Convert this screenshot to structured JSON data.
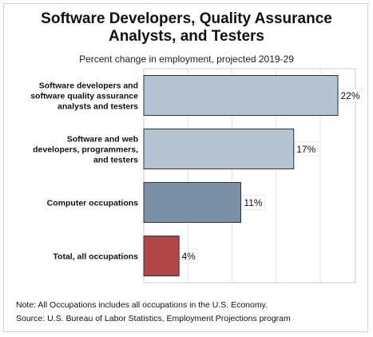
{
  "chart_data": {
    "type": "bar",
    "orientation": "horizontal",
    "title_lines": [
      "Software Developers, Quality Assurance",
      "Analysts, and Testers"
    ],
    "subtitle": "Percent change in employment, projected 2019-29",
    "categories": [
      [
        "Software developers and",
        "software quality assurance",
        "analysts and testers"
      ],
      [
        "Software and web",
        "developers, programmers,",
        "and testers"
      ],
      [
        "Computer occupations"
      ],
      [
        "Total, all occupations"
      ]
    ],
    "values": [
      22,
      17,
      11,
      4
    ],
    "value_labels": [
      "22%",
      "17%",
      "11%",
      "4%"
    ],
    "bar_colors": [
      "#b3c3cf",
      "#b3c3cf",
      "#7b8fa7",
      "#b34747"
    ],
    "xlim": [
      0,
      25
    ],
    "grid": true
  },
  "notes": {
    "note": "Note: All Occupations includes all occupations in the U.S. Economy.",
    "source": "Source: U.S. Bureau of Labor Statistics, Employment Projections program"
  }
}
